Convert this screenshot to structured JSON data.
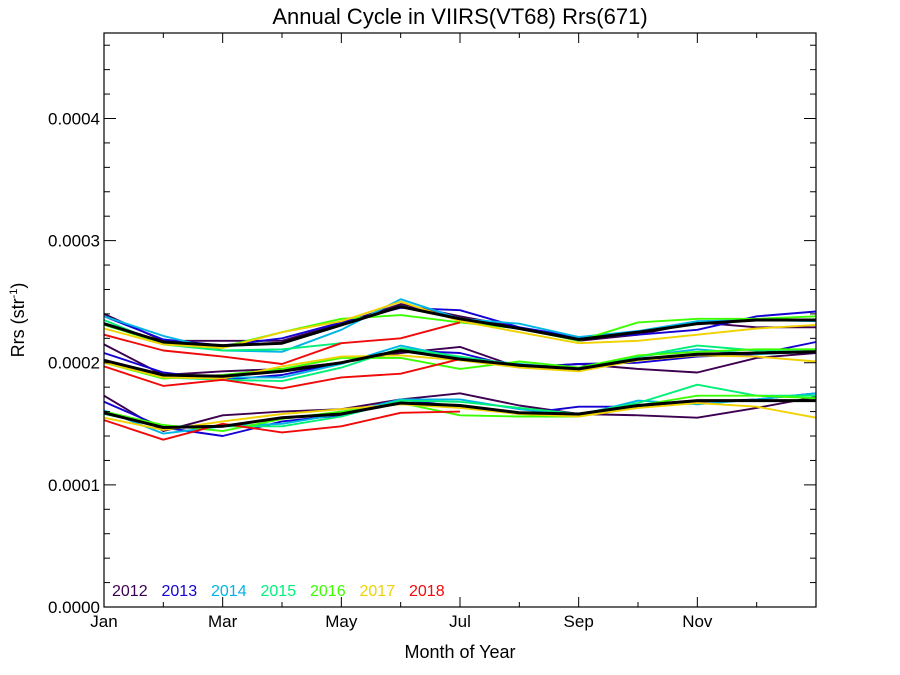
{
  "chart_data": {
    "type": "line",
    "title": "Annual Cycle in VIIRS(VT68) Rrs(671)",
    "xlabel": "Month of Year",
    "ylabel": "Rrs (str",
    "ylabel_sup": "-1",
    "ylabel_close": ")",
    "xlim": [
      1,
      13
    ],
    "ylim": [
      0.0,
      0.00047
    ],
    "x_ticks": [
      {
        "x": 1,
        "label": "Jan"
      },
      {
        "x": 3,
        "label": "Mar"
      },
      {
        "x": 5,
        "label": "May"
      },
      {
        "x": 7,
        "label": "Jul"
      },
      {
        "x": 9,
        "label": "Sep"
      },
      {
        "x": 11,
        "label": "Nov"
      }
    ],
    "y_ticks": [
      {
        "y": 0.0,
        "label": "0.0000"
      },
      {
        "y": 0.0001,
        "label": "0.0001"
      },
      {
        "y": 0.0002,
        "label": "0.0002"
      },
      {
        "y": 0.0003,
        "label": "0.0003"
      },
      {
        "y": 0.0004,
        "label": "0.0004"
      }
    ],
    "legend_position": "bottom-left",
    "series": [
      {
        "name": "2012",
        "color": "#3d0050",
        "lines": [
          {
            "x": [
              1,
              2,
              3,
              4,
              5,
              6,
              7,
              8,
              9,
              10,
              11,
              12,
              13
            ],
            "y": [
              0.00024,
              0.000218,
              0.000218,
              0.000218,
              0.000232,
              0.000248,
              0.000238,
              0.000229,
              0.000218,
              0.000223,
              0.000233,
              0.000229,
              0.000229
            ]
          },
          {
            "x": [
              1,
              2,
              3,
              4,
              5,
              6,
              7,
              8,
              9,
              10,
              11,
              12,
              13
            ],
            "y": [
              0.000215,
              0.00019,
              0.000193,
              0.000195,
              0.0002,
              0.000208,
              0.000213,
              0.000196,
              0.000199,
              0.000195,
              0.000192,
              0.000204,
              0.000208
            ]
          },
          {
            "x": [
              1,
              2,
              3,
              4,
              5,
              6,
              7,
              8,
              9,
              10,
              11,
              12,
              13
            ],
            "y": [
              0.000173,
              0.000144,
              0.000157,
              0.00016,
              0.000162,
              0.00017,
              0.000175,
              0.000165,
              0.000158,
              0.000157,
              0.000155,
              0.000163,
              0.000172
            ]
          }
        ]
      },
      {
        "name": "2013",
        "color": "#1400d2",
        "lines": [
          {
            "x": [
              1,
              2,
              3,
              4,
              5,
              6,
              7,
              8,
              9,
              10,
              11,
              12,
              13
            ],
            "y": [
              0.000238,
              0.000219,
              0.000214,
              0.00022,
              0.000233,
              0.000245,
              0.000243,
              0.000229,
              0.000221,
              0.000223,
              0.000227,
              0.000238,
              0.000242
            ]
          },
          {
            "x": [
              1,
              2,
              3,
              4,
              5,
              6,
              7,
              8,
              9,
              10,
              11,
              12,
              13
            ],
            "y": [
              0.000208,
              0.000192,
              0.000186,
              0.00019,
              0.0002,
              0.00021,
              0.000208,
              0.000196,
              0.000199,
              0.0002,
              0.000205,
              0.000207,
              0.000217
            ]
          },
          {
            "x": [
              1,
              2,
              3,
              4,
              5,
              6,
              7,
              8,
              9,
              10,
              11,
              12,
              13
            ],
            "y": [
              0.000168,
              0.000147,
              0.00014,
              0.000152,
              0.000157,
              0.00017,
              0.000164,
              0.000158,
              0.000164,
              0.000164,
              0.000168,
              0.00017,
              0.000175
            ]
          }
        ]
      },
      {
        "name": "2014",
        "color": "#00b4e6",
        "lines": [
          {
            "x": [
              1,
              2,
              3,
              4,
              5,
              6,
              7,
              8,
              9,
              10,
              11,
              12,
              13
            ],
            "y": [
              0.000238,
              0.000222,
              0.00021,
              0.000209,
              0.000227,
              0.000252,
              0.000236,
              0.000232,
              0.000221,
              0.000226,
              0.000234,
              0.000235,
              0.000234
            ]
          },
          {
            "x": [
              1,
              2,
              3,
              4,
              5,
              6,
              7,
              8,
              9,
              10,
              11,
              12,
              13
            ],
            "y": [
              0.0002,
              0.00019,
              0.000188,
              0.000188,
              0.000199,
              0.000214,
              0.000204,
              0.000199,
              0.000195,
              0.000205,
              0.000211,
              0.000207,
              0.000209
            ]
          },
          {
            "x": [
              1,
              2,
              3,
              4,
              5,
              6,
              7,
              8,
              9,
              10,
              11,
              12,
              13
            ],
            "y": [
              0.000161,
              0.000142,
              0.000148,
              0.00015,
              0.000158,
              0.00017,
              0.00017,
              0.000162,
              0.000157,
              0.000169,
              0.000166,
              0.00017,
              0.000175
            ]
          }
        ]
      },
      {
        "name": "2015",
        "color": "#00f078",
        "lines": [
          {
            "x": [
              1,
              2,
              3,
              4,
              5
            ],
            "y": [
              0.000235,
              0.000215,
              0.00021,
              0.000211,
              0.000216
            ]
          },
          {
            "x": [
              1,
              2,
              3,
              4,
              5,
              6,
              7,
              8,
              9,
              10,
              11,
              12,
              13
            ],
            "y": [
              0.0002,
              0.000188,
              0.000186,
              0.000185,
              0.000196,
              0.000212,
              0.000205,
              0.000198,
              0.000195,
              0.000205,
              0.000214,
              0.00021,
              0.000211
            ]
          },
          {
            "x": [
              1,
              2,
              3,
              4,
              5,
              6,
              7,
              8,
              9,
              10,
              11,
              12,
              13
            ],
            "y": [
              0.000158,
              0.000148,
              0.000148,
              0.000148,
              0.000156,
              0.000169,
              0.000168,
              0.000163,
              0.000158,
              0.000167,
              0.000182,
              0.000173,
              0.000173
            ]
          }
        ]
      },
      {
        "name": "2016",
        "color": "#3cff00",
        "lines": [
          {
            "x": [
              1,
              2,
              3,
              4,
              5,
              6,
              7,
              8,
              9,
              10,
              11,
              12,
              13
            ],
            "y": [
              0.000231,
              0.000216,
              0.000213,
              0.000225,
              0.000236,
              0.000239,
              0.000233,
              0.000228,
              0.000218,
              0.000233,
              0.000236,
              0.000236,
              0.000238
            ]
          },
          {
            "x": [
              1,
              2,
              3,
              4,
              5,
              6,
              7,
              8,
              9,
              10,
              11,
              12,
              13
            ],
            "y": [
              0.0002,
              0.000187,
              0.00019,
              0.000195,
              0.000204,
              0.000204,
              0.000195,
              0.000201,
              0.000196,
              0.000206,
              0.000209,
              0.000211,
              0.000211
            ]
          },
          {
            "x": [
              1,
              2,
              3,
              4,
              5,
              6,
              7,
              8,
              9,
              10,
              11,
              12,
              13
            ],
            "y": [
              0.00016,
              0.000149,
              0.000144,
              0.000154,
              0.00016,
              0.000167,
              0.000157,
              0.000156,
              0.000156,
              0.000165,
              0.000173,
              0.000173,
              0.000171
            ]
          }
        ]
      },
      {
        "name": "2017",
        "color": "#f0d200",
        "lines": [
          {
            "x": [
              1,
              2,
              3,
              4,
              5,
              6,
              7,
              8,
              9,
              10,
              11,
              12,
              13
            ],
            "y": [
              0.000228,
              0.000215,
              0.000212,
              0.000225,
              0.000234,
              0.00025,
              0.000234,
              0.000225,
              0.000216,
              0.000218,
              0.000223,
              0.000228,
              0.000231
            ]
          },
          {
            "x": [
              1,
              2,
              3,
              4,
              5,
              6,
              7,
              8,
              9,
              10,
              11,
              12,
              13
            ],
            "y": [
              0.0002,
              0.000188,
              0.000187,
              0.000197,
              0.000205,
              0.000206,
              0.000202,
              0.000196,
              0.000193,
              0.000202,
              0.000206,
              0.000205,
              0.000201
            ]
          },
          {
            "x": [
              1,
              2,
              3,
              4,
              5,
              6,
              7,
              8,
              9,
              10,
              11,
              12,
              13
            ],
            "y": [
              0.000155,
              0.000145,
              0.000152,
              0.000158,
              0.000162,
              0.000166,
              0.000163,
              0.000158,
              0.000156,
              0.000163,
              0.000167,
              0.000164,
              0.000155
            ]
          }
        ]
      },
      {
        "name": "2018",
        "color": "#f00a0a",
        "lines": [
          {
            "x": [
              1,
              2,
              3,
              4,
              5,
              6,
              7
            ],
            "y": [
              0.000223,
              0.00021,
              0.000205,
              0.000199,
              0.000216,
              0.00022,
              0.000233
            ]
          },
          {
            "x": [
              1,
              2,
              3,
              4,
              5,
              6,
              7
            ],
            "y": [
              0.000197,
              0.000181,
              0.000186,
              0.000179,
              0.000188,
              0.000191,
              0.000203
            ]
          },
          {
            "x": [
              1,
              2,
              3,
              4,
              5,
              6,
              7
            ],
            "y": [
              0.000153,
              0.000137,
              0.00015,
              0.000143,
              0.000148,
              0.000159,
              0.00016
            ]
          }
        ]
      }
    ],
    "mean_series": {
      "color": "#000000",
      "lines": [
        {
          "x": [
            1,
            2,
            3,
            4,
            5,
            6,
            7,
            8,
            9,
            10,
            11,
            12,
            13
          ],
          "y": [
            0.000232,
            0.000217,
            0.000214,
            0.000216,
            0.000231,
            0.000246,
            0.000236,
            0.000228,
            0.000219,
            0.000225,
            0.000232,
            0.000235,
            0.000235
          ]
        },
        {
          "x": [
            1,
            2,
            3,
            4,
            5,
            6,
            7,
            8,
            9,
            10,
            11,
            12,
            13
          ],
          "y": [
            0.000202,
            0.00019,
            0.000189,
            0.000193,
            0.0002,
            0.00021,
            0.000203,
            0.000198,
            0.000195,
            0.000203,
            0.000207,
            0.000208,
            0.000209
          ]
        },
        {
          "x": [
            1,
            2,
            3,
            4,
            5,
            6,
            7,
            8,
            9,
            10,
            11,
            12,
            13
          ],
          "y": [
            0.000159,
            0.000147,
            0.000148,
            0.000155,
            0.000158,
            0.000167,
            0.000165,
            0.000159,
            0.000158,
            0.000165,
            0.000169,
            0.000169,
            0.000169
          ]
        }
      ]
    }
  }
}
